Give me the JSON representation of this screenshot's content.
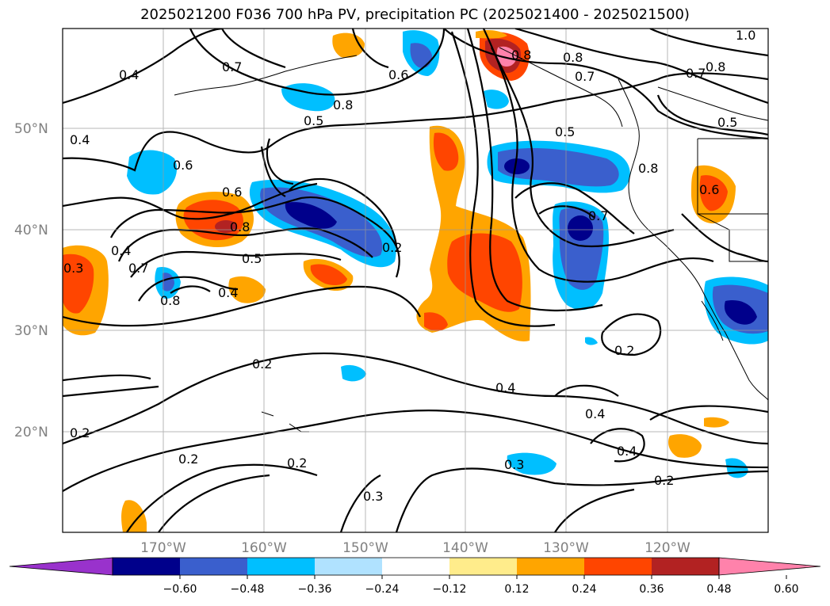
{
  "title": "2025021200 F036 700 hPa PV, precipitation PC (2025021400 - 2025021500)",
  "axes": {
    "lat_labels": [
      "50°N",
      "40°N",
      "30°N",
      "20°N"
    ],
    "lon_labels": [
      "170°W",
      "160°W",
      "150°W",
      "140°W",
      "130°W",
      "120°W"
    ]
  },
  "contour_labels": [
    "0.4",
    "0.7",
    "0.6",
    "0.8",
    "0.5",
    "0.8",
    "0.8",
    "0.7",
    "0.8",
    "1.0",
    "0.7",
    "0.5",
    "0.4",
    "0.6",
    "0.6",
    "0.8",
    "0.5",
    "0.7",
    "0.3",
    "0.4",
    "0.8",
    "0.4",
    "0.2",
    "0.5",
    "0.7",
    "0.8",
    "0.6",
    "0.2",
    "0.2",
    "0.4",
    "0.4",
    "0.2",
    "0.2",
    "0.2",
    "0.3",
    "0.3",
    "0.4",
    "0.2"
  ],
  "colorbar": {
    "ticks": [
      "−0.60",
      "−0.48",
      "−0.36",
      "−0.24",
      "−0.12",
      "0.12",
      "0.24",
      "0.36",
      "0.48",
      "0.60"
    ],
    "colors": [
      "#9932cc",
      "#00008b",
      "#3a5fcd",
      "#00bfff",
      "#b0e2ff",
      "#ffffff",
      "#ffec8b",
      "#ffa500",
      "#ff4500",
      "#b22222",
      "#ff82ab"
    ]
  }
}
